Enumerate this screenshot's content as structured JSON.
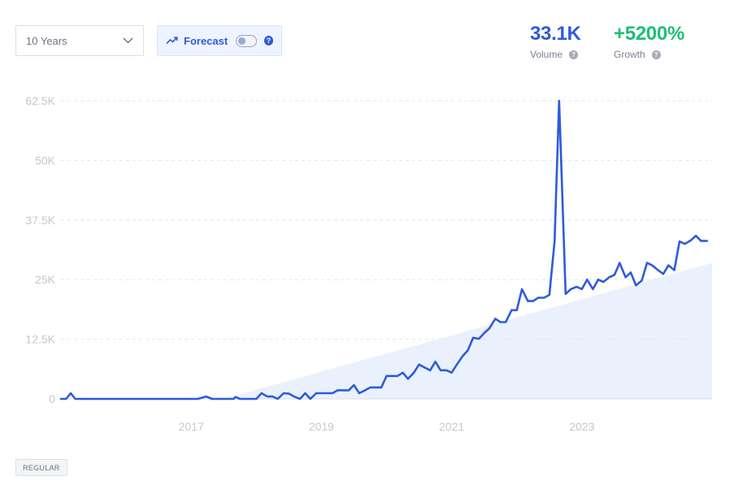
{
  "controls": {
    "range_value": "10 Years",
    "forecast_label": "Forecast",
    "forecast_enabled": false,
    "help_mark": "?"
  },
  "stats": {
    "volume_value": "33.1K",
    "volume_label": "Volume",
    "growth_value": "+5200%",
    "growth_label": "Growth"
  },
  "tag": "REGULAR",
  "colors": {
    "line": "#2f5bd9",
    "volume": "#2f5bd9",
    "growth": "#1fbf73",
    "trend_fill": "#eaf1fc"
  },
  "chart_data": {
    "type": "line",
    "title": "",
    "xlabel": "",
    "ylabel": "",
    "ylim": [
      0,
      62500
    ],
    "xlim": [
      2015.0,
      2025.0
    ],
    "grid": true,
    "yticks": [
      {
        "value": 0,
        "label": "0"
      },
      {
        "value": 12500,
        "label": "12.5K"
      },
      {
        "value": 25000,
        "label": "25K"
      },
      {
        "value": 37500,
        "label": "37.5K"
      },
      {
        "value": 50000,
        "label": "50K"
      },
      {
        "value": 62500,
        "label": "62.5K"
      }
    ],
    "xticks": [
      {
        "value": 2017,
        "label": "2017"
      },
      {
        "value": 2019,
        "label": "2019"
      },
      {
        "value": 2021,
        "label": "2021"
      },
      {
        "value": 2023,
        "label": "2023"
      }
    ],
    "trend_area": [
      {
        "x": 2017.5,
        "y": 0
      },
      {
        "x": 2025.0,
        "y": 28500
      }
    ],
    "series": [
      {
        "values": [
          {
            "x": 2015.0,
            "y": 0
          },
          {
            "x": 2015.08,
            "y": 0
          },
          {
            "x": 2015.15,
            "y": 1200
          },
          {
            "x": 2015.22,
            "y": 0
          },
          {
            "x": 2015.5,
            "y": 0
          },
          {
            "x": 2016.0,
            "y": 0
          },
          {
            "x": 2016.5,
            "y": 0
          },
          {
            "x": 2017.0,
            "y": 0
          },
          {
            "x": 2017.1,
            "y": 0
          },
          {
            "x": 2017.23,
            "y": 500
          },
          {
            "x": 2017.32,
            "y": 0
          },
          {
            "x": 2017.5,
            "y": 0
          },
          {
            "x": 2017.65,
            "y": 0
          },
          {
            "x": 2017.68,
            "y": 400
          },
          {
            "x": 2017.75,
            "y": 0
          },
          {
            "x": 2018.0,
            "y": 0
          },
          {
            "x": 2018.08,
            "y": 1200
          },
          {
            "x": 2018.17,
            "y": 500
          },
          {
            "x": 2018.25,
            "y": 500
          },
          {
            "x": 2018.33,
            "y": 0
          },
          {
            "x": 2018.42,
            "y": 1200
          },
          {
            "x": 2018.5,
            "y": 1100
          },
          {
            "x": 2018.58,
            "y": 500
          },
          {
            "x": 2018.67,
            "y": 0
          },
          {
            "x": 2018.75,
            "y": 1200
          },
          {
            "x": 2018.83,
            "y": 0
          },
          {
            "x": 2018.92,
            "y": 1200
          },
          {
            "x": 2019.0,
            "y": 1200
          },
          {
            "x": 2019.08,
            "y": 1200
          },
          {
            "x": 2019.17,
            "y": 1200
          },
          {
            "x": 2019.25,
            "y": 1800
          },
          {
            "x": 2019.33,
            "y": 1800
          },
          {
            "x": 2019.42,
            "y": 1800
          },
          {
            "x": 2019.5,
            "y": 2900
          },
          {
            "x": 2019.58,
            "y": 1200
          },
          {
            "x": 2019.67,
            "y": 1800
          },
          {
            "x": 2019.75,
            "y": 2400
          },
          {
            "x": 2019.83,
            "y": 2400
          },
          {
            "x": 2019.92,
            "y": 2400
          },
          {
            "x": 2020.0,
            "y": 4800
          },
          {
            "x": 2020.08,
            "y": 4800
          },
          {
            "x": 2020.17,
            "y": 4800
          },
          {
            "x": 2020.25,
            "y": 5500
          },
          {
            "x": 2020.33,
            "y": 4200
          },
          {
            "x": 2020.42,
            "y": 5500
          },
          {
            "x": 2020.5,
            "y": 7200
          },
          {
            "x": 2020.58,
            "y": 6600
          },
          {
            "x": 2020.67,
            "y": 6000
          },
          {
            "x": 2020.75,
            "y": 7800
          },
          {
            "x": 2020.83,
            "y": 6000
          },
          {
            "x": 2020.92,
            "y": 6000
          },
          {
            "x": 2021.0,
            "y": 5500
          },
          {
            "x": 2021.08,
            "y": 7200
          },
          {
            "x": 2021.17,
            "y": 9000
          },
          {
            "x": 2021.25,
            "y": 10200
          },
          {
            "x": 2021.33,
            "y": 12800
          },
          {
            "x": 2021.42,
            "y": 12600
          },
          {
            "x": 2021.5,
            "y": 13800
          },
          {
            "x": 2021.58,
            "y": 14800
          },
          {
            "x": 2021.67,
            "y": 16800
          },
          {
            "x": 2021.75,
            "y": 16100
          },
          {
            "x": 2021.83,
            "y": 16100
          },
          {
            "x": 2021.92,
            "y": 18600
          },
          {
            "x": 2022.0,
            "y": 18600
          },
          {
            "x": 2022.08,
            "y": 23000
          },
          {
            "x": 2022.17,
            "y": 20500
          },
          {
            "x": 2022.25,
            "y": 20500
          },
          {
            "x": 2022.33,
            "y": 21200
          },
          {
            "x": 2022.42,
            "y": 21200
          },
          {
            "x": 2022.5,
            "y": 21800
          },
          {
            "x": 2022.58,
            "y": 33000
          },
          {
            "x": 2022.65,
            "y": 62500
          },
          {
            "x": 2022.75,
            "y": 22000
          },
          {
            "x": 2022.83,
            "y": 23000
          },
          {
            "x": 2022.92,
            "y": 23500
          },
          {
            "x": 2023.0,
            "y": 23000
          },
          {
            "x": 2023.08,
            "y": 25000
          },
          {
            "x": 2023.17,
            "y": 23000
          },
          {
            "x": 2023.25,
            "y": 25000
          },
          {
            "x": 2023.33,
            "y": 24500
          },
          {
            "x": 2023.42,
            "y": 25500
          },
          {
            "x": 2023.5,
            "y": 26000
          },
          {
            "x": 2023.58,
            "y": 28500
          },
          {
            "x": 2023.67,
            "y": 25500
          },
          {
            "x": 2023.75,
            "y": 26500
          },
          {
            "x": 2023.83,
            "y": 23800
          },
          {
            "x": 2023.92,
            "y": 24800
          },
          {
            "x": 2024.0,
            "y": 28500
          },
          {
            "x": 2024.08,
            "y": 28000
          },
          {
            "x": 2024.17,
            "y": 27000
          },
          {
            "x": 2024.25,
            "y": 26200
          },
          {
            "x": 2024.33,
            "y": 28000
          },
          {
            "x": 2024.42,
            "y": 27000
          },
          {
            "x": 2024.5,
            "y": 33000
          },
          {
            "x": 2024.58,
            "y": 32500
          },
          {
            "x": 2024.67,
            "y": 33200
          },
          {
            "x": 2024.75,
            "y": 34200
          },
          {
            "x": 2024.83,
            "y": 33100
          },
          {
            "x": 2024.92,
            "y": 33100
          }
        ]
      }
    ]
  }
}
